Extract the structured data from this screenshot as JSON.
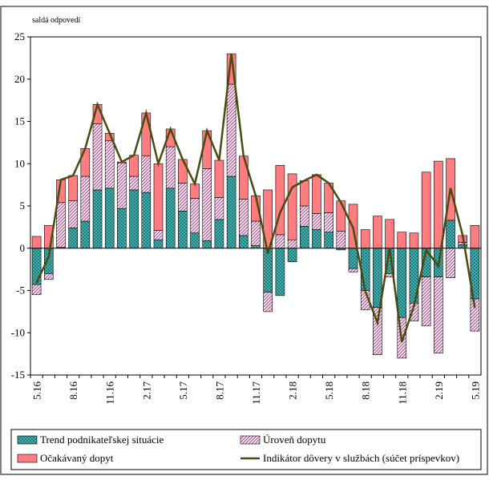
{
  "chart_data": {
    "type": "stacked-bar-line",
    "y_label": "saldá odpovedí",
    "categories": [
      "5.16",
      null,
      null,
      "8.16",
      null,
      null,
      "11.16",
      null,
      null,
      "2.17",
      null,
      null,
      "5.17",
      null,
      null,
      "8.17",
      null,
      null,
      "11.17",
      null,
      null,
      "2.18",
      null,
      null,
      "5.18",
      null,
      null,
      "8.18",
      null,
      null,
      "11.18",
      null,
      null,
      "2.19",
      null,
      null,
      "5.19"
    ],
    "ylim": [
      -15,
      25
    ],
    "yticks": [
      -15,
      -10,
      -5,
      0,
      5,
      10,
      15,
      20,
      25
    ],
    "series": [
      {
        "name": "Trend podnikateľskej situácie",
        "color": "#4bbcbc",
        "values": [
          -4.3,
          -3.0,
          0.1,
          2.4,
          3.2,
          6.9,
          7.1,
          4.7,
          6.9,
          6.6,
          1.0,
          7.1,
          4.4,
          1.8,
          0.9,
          3.4,
          8.5,
          1.5,
          0.3,
          -5.2,
          -5.6,
          -1.6,
          2.6,
          2.2,
          1.9,
          -0.2,
          -2.4,
          -5.0,
          -7.0,
          -3.0,
          -8.2,
          -6.5,
          -3.4,
          -3.4,
          3.3,
          0.4,
          -6.0
        ]
      },
      {
        "name": "Úroveň dopytu",
        "color": "#c0509a",
        "values": [
          -1.2,
          -0.7,
          5.3,
          3.2,
          5.3,
          7.8,
          5.6,
          5.4,
          1.6,
          4.3,
          1.1,
          4.9,
          3.3,
          4.1,
          8.5,
          2.6,
          10.9,
          4.3,
          2.9,
          -2.3,
          1.6,
          1.0,
          2.4,
          1.9,
          2.3,
          2.0,
          -0.4,
          -2.3,
          -5.6,
          -0.4,
          -4.8,
          -2.1,
          -5.8,
          -9.0,
          -3.5,
          0.3,
          -3.8
        ]
      },
      {
        "name": "Očakávaný dopyt",
        "color": "#ff7c80",
        "values": [
          1.4,
          2.7,
          2.7,
          3.0,
          3.3,
          2.3,
          0.9,
          0.1,
          2.5,
          5.1,
          7.9,
          2.1,
          2.8,
          1.7,
          4.5,
          4.4,
          3.6,
          5.1,
          3.0,
          6.9,
          8.2,
          7.8,
          3.0,
          4.6,
          3.5,
          3.6,
          5.2,
          2.2,
          3.8,
          3.4,
          1.9,
          1.8,
          9.0,
          10.3,
          7.3,
          0.8,
          2.7
        ]
      },
      {
        "name": "Indikátor dôvery v službách (súčet príspevkov)",
        "color": "#4a4a10",
        "kind": "line",
        "values": [
          -4.1,
          -1.0,
          8.1,
          8.6,
          11.8,
          17.0,
          13.6,
          10.2,
          11.0,
          16.0,
          10.0,
          14.1,
          10.5,
          7.6,
          13.9,
          10.4,
          23.0,
          10.9,
          6.2,
          -0.6,
          4.2,
          7.2,
          8.0,
          8.7,
          7.7,
          5.4,
          2.4,
          -5.1,
          -8.8,
          0,
          -11.1,
          -6.8,
          -0.2,
          -2.1,
          7.1,
          1.5,
          -7.1
        ]
      }
    ]
  }
}
